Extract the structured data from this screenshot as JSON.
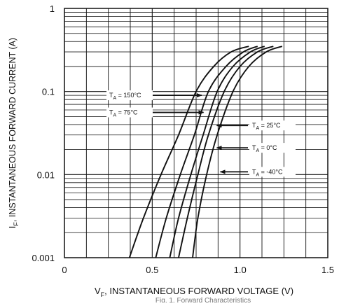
{
  "chart_data": {
    "type": "line",
    "title": "",
    "xlabel": "INSTANTANEOUS FORWARD VOLTAGE (V)",
    "xlabel_symbol": "V",
    "xlabel_subscript": "F",
    "ylabel": "INSTANTANEOUS FORWARD CURRENT (A)",
    "ylabel_symbol": "I",
    "ylabel_subscript": "F",
    "caption": "Fig. 1. Forward Characteristics",
    "xlim": [
      0,
      1.5
    ],
    "ylim": [
      0.001,
      1
    ],
    "y_scale": "log",
    "grid": true,
    "x_ticks": [
      0,
      0.5,
      1.0,
      1.5
    ],
    "x_tick_labels": [
      "0",
      "0.5",
      "1.0",
      "1.5"
    ],
    "y_ticks": [
      0.001,
      0.01,
      0.1,
      1
    ],
    "y_tick_labels": [
      "0.001",
      "0.01",
      "0.1",
      "1"
    ],
    "series": [
      {
        "name": "150°C",
        "color": "#111111",
        "points": [
          [
            0.37,
            0.001
          ],
          [
            0.45,
            0.003
          ],
          [
            0.55,
            0.01
          ],
          [
            0.65,
            0.03
          ],
          [
            0.75,
            0.1
          ],
          [
            0.85,
            0.2
          ],
          [
            0.95,
            0.3
          ],
          [
            1.05,
            0.35
          ]
        ]
      },
      {
        "name": "75°C",
        "color": "#111111",
        "points": [
          [
            0.52,
            0.001
          ],
          [
            0.58,
            0.003
          ],
          [
            0.66,
            0.01
          ],
          [
            0.74,
            0.03
          ],
          [
            0.82,
            0.1
          ],
          [
            0.92,
            0.2
          ],
          [
            1.02,
            0.3
          ],
          [
            1.1,
            0.35
          ]
        ]
      },
      {
        "name": "25°C",
        "color": "#111111",
        "points": [
          [
            0.6,
            0.001
          ],
          [
            0.65,
            0.003
          ],
          [
            0.72,
            0.01
          ],
          [
            0.79,
            0.03
          ],
          [
            0.87,
            0.1
          ],
          [
            0.96,
            0.2
          ],
          [
            1.06,
            0.3
          ],
          [
            1.14,
            0.35
          ]
        ]
      },
      {
        "name": "0°C",
        "color": "#111111",
        "points": [
          [
            0.65,
            0.001
          ],
          [
            0.7,
            0.003
          ],
          [
            0.76,
            0.01
          ],
          [
            0.82,
            0.03
          ],
          [
            0.91,
            0.1
          ],
          [
            1.0,
            0.2
          ],
          [
            1.1,
            0.3
          ],
          [
            1.19,
            0.35
          ]
        ]
      },
      {
        "name": "-40°C",
        "color": "#111111",
        "points": [
          [
            0.73,
            0.001
          ],
          [
            0.76,
            0.003
          ],
          [
            0.81,
            0.01
          ],
          [
            0.87,
            0.03
          ],
          [
            0.96,
            0.1
          ],
          [
            1.05,
            0.2
          ],
          [
            1.15,
            0.3
          ],
          [
            1.24,
            0.35
          ]
        ]
      }
    ],
    "annotations": [
      {
        "label_symbol": "T",
        "label_subscript": "A",
        "label_value": "= 150°C",
        "series": "150°C",
        "side": "left",
        "y": 0.09,
        "arrow_to_x": 0.79
      },
      {
        "label_symbol": "T",
        "label_subscript": "A",
        "label_value": "= 75°C",
        "series": "75°C",
        "side": "left",
        "y": 0.056,
        "arrow_to_x": 0.8
      },
      {
        "label_symbol": "T",
        "label_subscript": "A",
        "label_value": "= 25°C",
        "series": "25°C",
        "side": "right",
        "y": 0.039,
        "arrow_to_x": 0.86
      },
      {
        "label_symbol": "T",
        "label_subscript": "A",
        "label_value": "= 0°C",
        "series": "0°C",
        "side": "right",
        "y": 0.021,
        "arrow_to_x": 0.86
      },
      {
        "label_symbol": "T",
        "label_subscript": "A",
        "label_value": "= -40°C",
        "series": "-40°C",
        "side": "right",
        "y": 0.0108,
        "arrow_to_x": 0.88
      }
    ]
  }
}
